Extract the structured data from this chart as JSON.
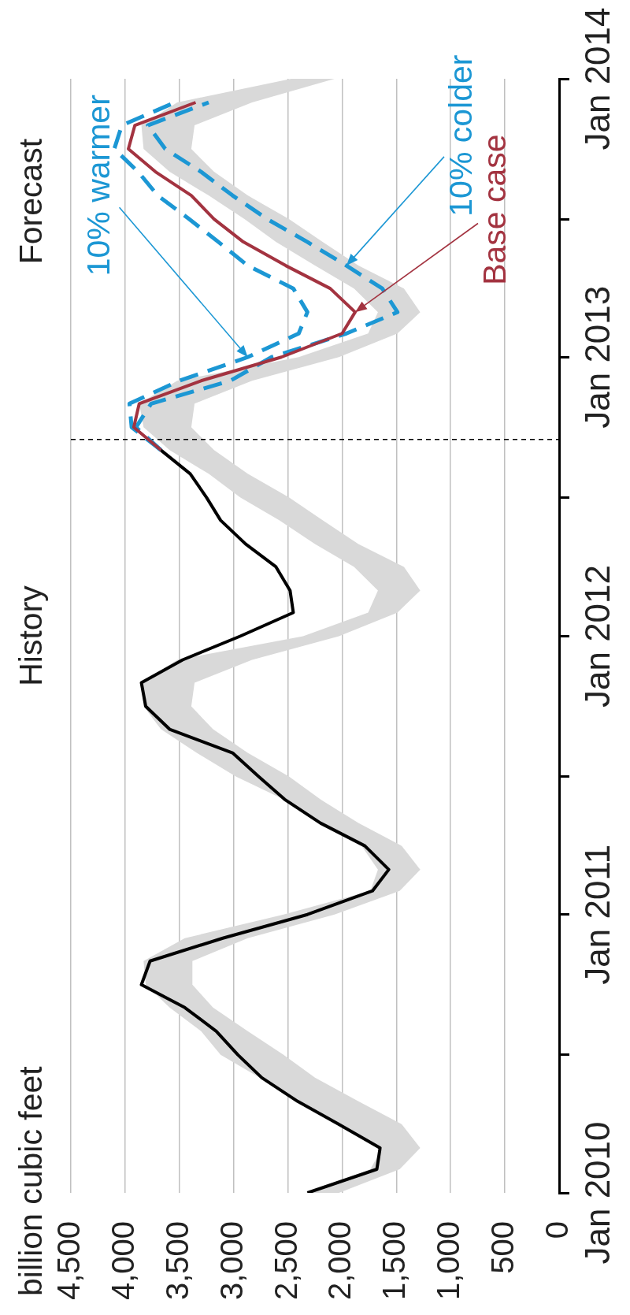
{
  "chart_data": {
    "type": "line",
    "orientation": "horizontal",
    "ylabel": "billion cubic feet",
    "ylim": [
      "2010-01",
      "2014-01"
    ],
    "yticks": [
      {
        "value": "2010-01",
        "label": "Jan 2010"
      },
      {
        "value": "2010-07",
        "label": null
      },
      {
        "value": "2011-01",
        "label": "Jan 2011"
      },
      {
        "value": "2011-07",
        "label": null
      },
      {
        "value": "2012-01",
        "label": "Jan 2012"
      },
      {
        "value": "2012-07",
        "label": null
      },
      {
        "value": "2013-01",
        "label": "Jan 2013"
      },
      {
        "value": "2013-07",
        "label": null
      },
      {
        "value": "2014-01",
        "label": "Jan 2014"
      }
    ],
    "xlim": [
      4500,
      0
    ],
    "xticks": [
      {
        "value": 4500,
        "label": "4,500"
      },
      {
        "value": 4000,
        "label": "4,000"
      },
      {
        "value": 3500,
        "label": "3,500"
      },
      {
        "value": 3000,
        "label": "3,000"
      },
      {
        "value": 2500,
        "label": "2,500"
      },
      {
        "value": 2000,
        "label": "2,000"
      },
      {
        "value": 1500,
        "label": "1,500"
      },
      {
        "value": 1000,
        "label": "1,000"
      },
      500,
      0
    ],
    "grid": "x",
    "marker": "none",
    "series": [
      {
        "color": "#d9d9d9",
        "x": [
          "2010-01",
          "2010-02",
          "2010-03",
          "2010-04",
          "2010-05",
          "2010-06",
          "2010-07",
          "2010-08",
          "2010-09",
          "2010-10",
          "2010-11",
          "2010-12",
          "2011-01",
          "2011-02",
          "2011-03",
          "2011-04",
          "2011-05",
          "2011-06",
          "2011-07",
          "2011-08",
          "2011-09",
          "2011-10",
          "2011-11",
          "2011-12",
          "2012-01",
          "2012-02",
          "2012-03",
          "2012-04",
          "2012-05",
          "2012-06",
          "2012-07",
          "2012-08",
          "2012-09",
          "2012-10",
          "2012-11",
          "2012-12",
          "2013-01",
          "2013-02",
          "2013-03",
          "2013-04",
          "2013-05",
          "2013-06",
          "2013-07",
          "2013-08",
          "2013-09",
          "2013-10",
          "2013-11",
          "2013-12",
          "2014-01"
        ],
        "values": [
          null,
          null,
          null,
          null,
          null,
          null,
          null,
          null,
          null,
          null,
          null,
          null,
          null,
          null,
          null,
          null,
          null,
          null,
          null,
          null,
          null,
          null,
          null,
          null,
          null,
          null,
          null,
          null,
          null,
          null,
          null,
          null,
          null,
          null,
          null,
          null,
          null,
          null,
          null,
          null,
          null,
          null,
          null,
          null,
          null,
          null,
          null,
          null,
          null
        ],
        "upper": [
          2320,
          1740,
          1630,
          2050,
          2410,
          2760,
          3120,
          3300,
          3590,
          3810,
          3830,
          3450,
          2540,
          1740,
          1670,
          1820,
          2200,
          2540,
          2980,
          3340,
          3670,
          3830,
          3850,
          3520,
          2360,
          1760,
          1670,
          1890,
          2250,
          2580,
          2940,
          3230,
          3590,
          3830,
          3870,
          3520,
          2400,
          1760,
          1670,
          1890,
          2250,
          2610,
          2900,
          3230,
          3590,
          3830,
          3850,
          3520,
          2470
        ],
        "lower": [
          2030,
          1470,
          1280,
          1450,
          1850,
          2250,
          2540,
          2870,
          3190,
          3380,
          3380,
          2870,
          2070,
          1470,
          1280,
          1450,
          1850,
          2200,
          2490,
          2870,
          3190,
          3390,
          3360,
          2830,
          2030,
          1490,
          1280,
          1430,
          1850,
          2180,
          2490,
          2870,
          3180,
          3390,
          3360,
          2830,
          2030,
          1490,
          1280,
          1430,
          1850,
          2180,
          2490,
          2870,
          3180,
          3390,
          3360,
          2830,
          2070
        ]
      },
      {
        "color": "#000000",
        "x": [
          "2010-01",
          "2010-02",
          "2010-03",
          "2010-04",
          "2010-05",
          "2010-06",
          "2010-07",
          "2010-08",
          "2010-09",
          "2010-10",
          "2010-11",
          "2010-12",
          "2011-01",
          "2011-02",
          "2011-03",
          "2011-04",
          "2011-05",
          "2011-06",
          "2011-07",
          "2011-08",
          "2011-09",
          "2011-10",
          "2011-11",
          "2011-12",
          "2012-01",
          "2012-02",
          "2012-03",
          "2012-04",
          "2012-05",
          "2012-06",
          "2012-07",
          "2012-08",
          "2012-09"
        ],
        "values": [
          2320,
          1680,
          1650,
          2030,
          2410,
          2740,
          2960,
          3160,
          3450,
          3850,
          3770,
          3100,
          2320,
          1720,
          1570,
          1790,
          2200,
          2530,
          2770,
          3010,
          3590,
          3810,
          3850,
          3470,
          2940,
          2450,
          2480,
          2610,
          2890,
          3120,
          3250,
          3400,
          3670
        ]
      },
      {
        "color": "#a33340",
        "x": [
          "2012-09",
          "2012-10",
          "2012-11",
          "2012-12",
          "2013-01",
          "2013-02",
          "2013-03",
          "2013-04",
          "2013-05",
          "2013-06",
          "2013-07",
          "2013-08",
          "2013-09",
          "2013-10",
          "2013-11",
          "2013-12"
        ],
        "values": [
          3670,
          3920,
          3870,
          3300,
          2560,
          2000,
          1880,
          2110,
          2520,
          2910,
          3180,
          3390,
          3720,
          3970,
          3910,
          3350
        ]
      },
      {
        "color": "#1c97d4",
        "line_style": "dashed",
        "x": [
          "2012-09",
          "2012-10",
          "2012-11",
          "2012-12",
          "2013-01",
          "2013-02",
          "2013-03",
          "2013-04",
          "2013-05",
          "2013-06",
          "2013-07",
          "2013-08",
          "2013-09",
          "2013-10",
          "2013-11",
          "2013-12"
        ],
        "values": [
          3670,
          3940,
          3960,
          3500,
          2870,
          2400,
          2320,
          2450,
          2870,
          3140,
          3410,
          3700,
          3880,
          4100,
          4030,
          3540
        ]
      },
      {
        "color": "#1c97d4",
        "line_style": "dashed",
        "x": [
          "2012-09",
          "2012-10",
          "2012-11",
          "2012-12",
          "2013-01",
          "2013-02",
          "2013-03",
          "2013-04",
          "2013-05",
          "2013-06",
          "2013-07",
          "2013-08",
          "2013-09",
          "2013-10",
          "2013-11",
          "2013-12"
        ],
        "values": [
          3670,
          3900,
          3760,
          3030,
          2650,
          1960,
          1490,
          1630,
          1960,
          2320,
          2690,
          3010,
          3300,
          3630,
          3790,
          3230
        ]
      }
    ],
    "ref_lines": [
      {
        "axis": "y",
        "value": "2012-09-15",
        "line_style": "dashed",
        "color": "#000000"
      }
    ],
    "annotations": [
      "History",
      "Forecast",
      {
        "text": "Base case",
        "x": 1880,
        "y": "2013-03"
      },
      {
        "text": "10% warmer",
        "x": 2870,
        "y": "2013-01"
      },
      {
        "text": "10% colder",
        "x": 1960,
        "y": "2013-05"
      }
    ]
  }
}
